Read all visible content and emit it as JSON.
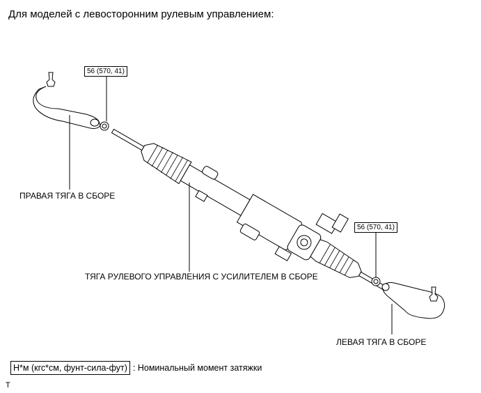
{
  "title": "Для моделей с левосторонним рулевым управлением:",
  "torque_labels": {
    "right_nut": "56 (570, 41)",
    "left_nut": "56 (570, 41)"
  },
  "parts": {
    "right_tie_rod": "ПРАВАЯ ТЯГА В СБОРЕ",
    "steering_rack": "ТЯГА РУЛЕВОГО УПРАВЛЕНИЯ С УСИЛИТЕЛЕМ В СБОРЕ",
    "left_tie_rod": "ЛЕВАЯ ТЯГА В СБОРЕ"
  },
  "legend": {
    "key": "Н*м (кгс*см, фунт-сила-фут)",
    "description": ": Номинальный момент затяжки"
  },
  "footer_mark": "T"
}
